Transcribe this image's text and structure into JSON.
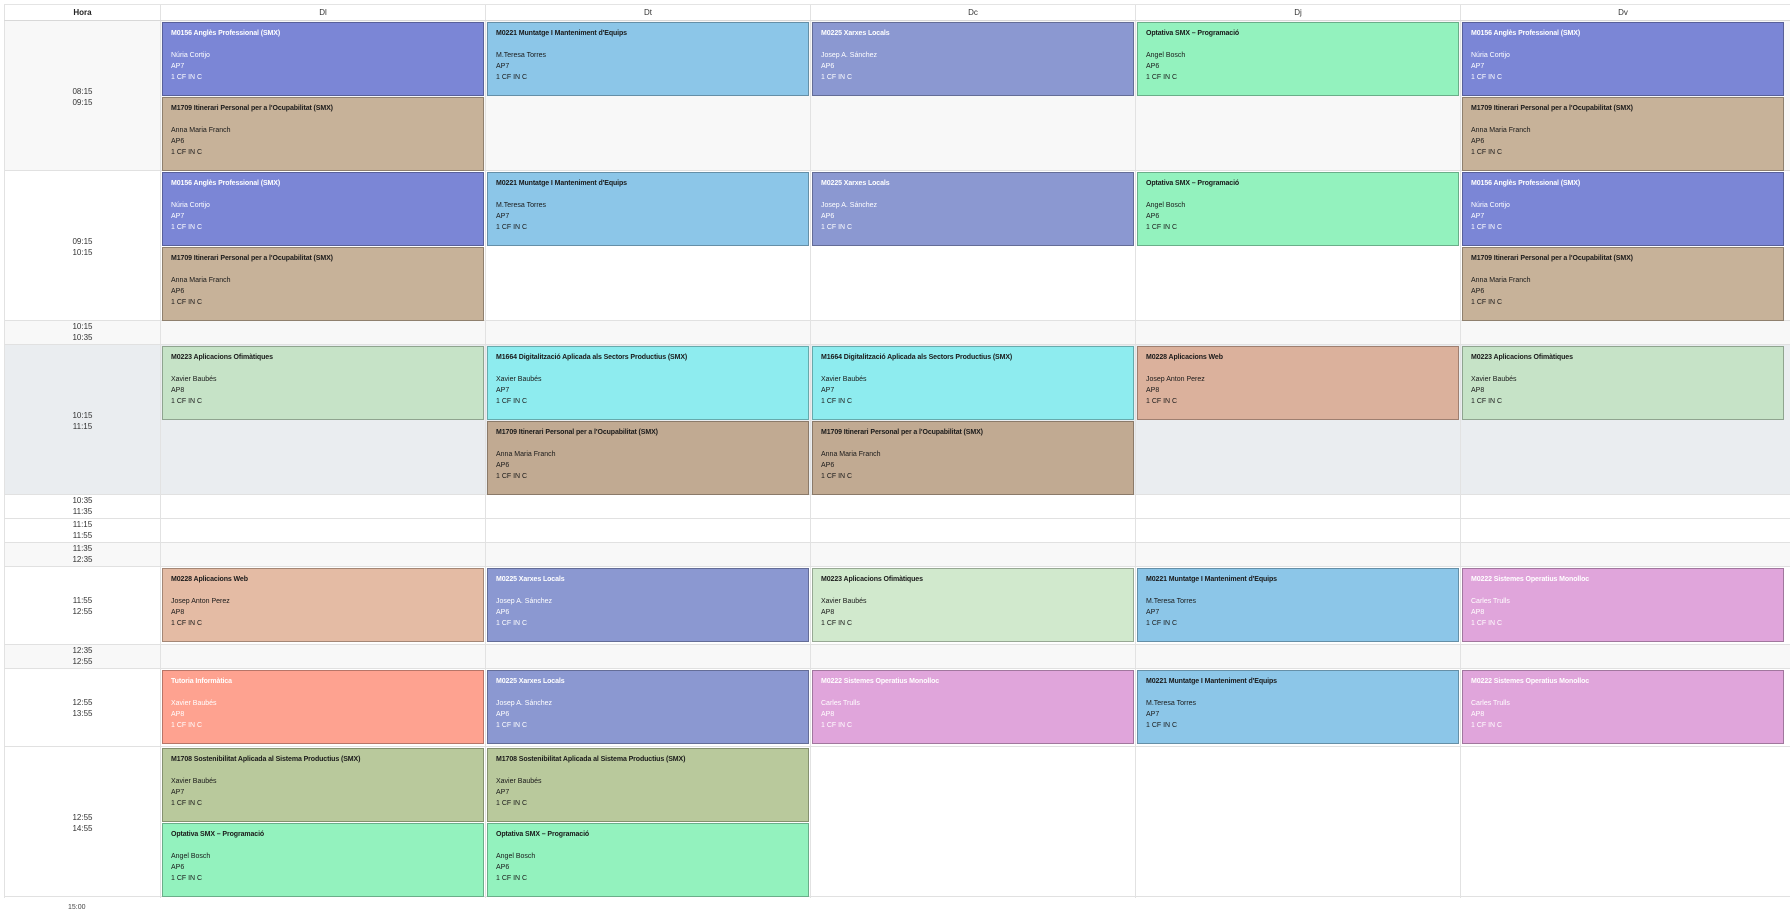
{
  "header": {
    "hora": "Hora",
    "days": [
      "Dl",
      "Dt",
      "Dc",
      "Dj",
      "Dv"
    ]
  },
  "colors": {
    "angles": "#7b86d6",
    "muntatge": "#8cc6e8",
    "xarxes": "#8b98d1",
    "optativa": "#93f2be",
    "itinerari": "#c7b299",
    "itinerari_dark": "#c1aa92",
    "aplicacions_ofimatiques": "#c6e3c7",
    "digitalitzacio": "#8eecef",
    "aplicacions_web": "#dbb19c",
    "aplicacions_web_light": "#e4bba4",
    "sistemes": "#e0a5db",
    "tutoria": "#fea290",
    "sostenibilitat": "#b9c99c",
    "ofimatiques_light": "#d1e9cd"
  },
  "rows": [
    {
      "times": [
        "08:15",
        "09:15"
      ],
      "days": [
        [
          {
            "title": "M0156 Anglès Professional (SMX)",
            "teacher": "Núria Cortijo",
            "room": "AP7",
            "group": "1 CF IN C",
            "color": "#7b86d6",
            "dark": true
          },
          {
            "title": "M1709 Itinerari Personal per a l'Ocupabilitat (SMX)",
            "teacher": "Anna Maria Franch",
            "room": "AP6",
            "group": "1 CF IN C",
            "color": "#c7b299",
            "dark": false
          }
        ],
        [
          {
            "title": "M0221 Muntatge I Manteniment d'Equips",
            "teacher": "M.Teresa Torres",
            "room": "AP7",
            "group": "1 CF IN C",
            "color": "#8cc6e8",
            "dark": false
          }
        ],
        [
          {
            "title": "M0225 Xarxes Locals",
            "teacher": "Josep A. Sánchez",
            "room": "AP6",
            "group": "1 CF IN C",
            "color": "#8b98d1",
            "dark": true
          }
        ],
        [
          {
            "title": "Optativa SMX – Programació",
            "teacher": "Angel Bosch",
            "room": "AP6",
            "group": "1 CF IN C",
            "color": "#93f2be",
            "dark": false
          }
        ],
        [
          {
            "title": "M0156 Anglès Professional (SMX)",
            "teacher": "Núria Cortijo",
            "room": "AP7",
            "group": "1 CF IN C",
            "color": "#7b86d6",
            "dark": true
          },
          {
            "title": "M1709 Itinerari Personal per a l'Ocupabilitat (SMX)",
            "teacher": "Anna Maria Franch",
            "room": "AP6",
            "group": "1 CF IN C",
            "color": "#c7b299",
            "dark": false
          }
        ]
      ]
    },
    {
      "times": [
        "09:15",
        "10:15"
      ],
      "days": [
        [
          {
            "title": "M0156 Anglès Professional (SMX)",
            "teacher": "Núria Cortijo",
            "room": "AP7",
            "group": "1 CF IN C",
            "color": "#7b86d6",
            "dark": true
          },
          {
            "title": "M1709 Itinerari Personal per a l'Ocupabilitat (SMX)",
            "teacher": "Anna Maria Franch",
            "room": "AP6",
            "group": "1 CF IN C",
            "color": "#c7b299",
            "dark": false
          }
        ],
        [
          {
            "title": "M0221 Muntatge I Manteniment d'Equips",
            "teacher": "M.Teresa Torres",
            "room": "AP7",
            "group": "1 CF IN C",
            "color": "#8cc6e8",
            "dark": false
          }
        ],
        [
          {
            "title": "M0225 Xarxes Locals",
            "teacher": "Josep A. Sánchez",
            "room": "AP6",
            "group": "1 CF IN C",
            "color": "#8b98d1",
            "dark": true
          }
        ],
        [
          {
            "title": "Optativa SMX – Programació",
            "teacher": "Angel Bosch",
            "room": "AP6",
            "group": "1 CF IN C",
            "color": "#93f2be",
            "dark": false
          }
        ],
        [
          {
            "title": "M0156 Anglès Professional (SMX)",
            "teacher": "Núria Cortijo",
            "room": "AP7",
            "group": "1 CF IN C",
            "color": "#7b86d6",
            "dark": true
          },
          {
            "title": "M1709 Itinerari Personal per a l'Ocupabilitat (SMX)",
            "teacher": "Anna Maria Franch",
            "room": "AP6",
            "group": "1 CF IN C",
            "color": "#c7b299",
            "dark": false
          }
        ]
      ]
    },
    {
      "times": [
        "10:15",
        "10:35"
      ],
      "days": [
        [],
        [],
        [],
        [],
        []
      ]
    },
    {
      "times": [
        "10:15",
        "11:15"
      ],
      "days": [
        [
          {
            "title": "M0223 Aplicacions Ofimàtiques",
            "teacher": "Xavier Baubés",
            "room": "AP8",
            "group": "1 CF IN C",
            "color": "#c6e3c7",
            "dark": false
          }
        ],
        [
          {
            "title": "M1664 Digitalització Aplicada als Sectors Productius (SMX)",
            "teacher": "Xavier Baubés",
            "room": "AP7",
            "group": "1 CF IN C",
            "color": "#8eecef",
            "dark": false
          },
          {
            "title": "M1709 Itinerari Personal per a l'Ocupabilitat (SMX)",
            "teacher": "Anna Maria Franch",
            "room": "AP6",
            "group": "1 CF IN C",
            "color": "#c1aa92",
            "dark": false
          }
        ],
        [
          {
            "title": "M1664 Digitalització Aplicada als Sectors Productius (SMX)",
            "teacher": "Xavier Baubés",
            "room": "AP7",
            "group": "1 CF IN C",
            "color": "#8eecef",
            "dark": false
          },
          {
            "title": "M1709 Itinerari Personal per a l'Ocupabilitat (SMX)",
            "teacher": "Anna Maria Franch",
            "room": "AP6",
            "group": "1 CF IN C",
            "color": "#c1aa92",
            "dark": false
          }
        ],
        [
          {
            "title": "M0228 Aplicacions Web",
            "teacher": "Josep Anton Perez",
            "room": "AP8",
            "group": "1 CF IN C",
            "color": "#dbb19c",
            "dark": false
          }
        ],
        [
          {
            "title": "M0223 Aplicacions Ofimàtiques",
            "teacher": "Xavier Baubés",
            "room": "AP8",
            "group": "1 CF IN C",
            "color": "#c6e3c7",
            "dark": false
          }
        ]
      ]
    },
    {
      "times": [
        "10:35",
        "11:35"
      ],
      "days": [
        [],
        [],
        [],
        [],
        []
      ]
    },
    {
      "times": [
        "11:15",
        "11:55"
      ],
      "days": [
        [],
        [],
        [],
        [],
        []
      ]
    },
    {
      "times": [
        "11:35",
        "12:35"
      ],
      "days": [
        [],
        [],
        [],
        [],
        []
      ]
    },
    {
      "times": [
        "11:55",
        "12:55"
      ],
      "days": [
        [
          {
            "title": "M0228 Aplicacions Web",
            "teacher": "Josep Anton Perez",
            "room": "AP8",
            "group": "1 CF IN C",
            "color": "#e4bba4",
            "dark": false
          }
        ],
        [
          {
            "title": "M0225 Xarxes Locals",
            "teacher": "Josep A. Sánchez",
            "room": "AP6",
            "group": "1 CF IN C",
            "color": "#8b98d1",
            "dark": true
          }
        ],
        [
          {
            "title": "M0223 Aplicacions Ofimàtiques",
            "teacher": "Xavier Baubés",
            "room": "AP8",
            "group": "1 CF IN C",
            "color": "#d1e9cd",
            "dark": false
          }
        ],
        [
          {
            "title": "M0221 Muntatge I Manteniment d'Equips",
            "teacher": "M.Teresa Torres",
            "room": "AP7",
            "group": "1 CF IN C",
            "color": "#8cc6e8",
            "dark": false
          }
        ],
        [
          {
            "title": "M0222 Sistemes Operatius Monolloc",
            "teacher": "Carles Trulls",
            "room": "AP8",
            "group": "1 CF IN C",
            "color": "#e0a5db",
            "dark": true
          }
        ]
      ]
    },
    {
      "times": [
        "12:35",
        "12:55"
      ],
      "days": [
        [],
        [],
        [],
        [],
        []
      ]
    },
    {
      "times": [
        "12:55",
        "13:55"
      ],
      "days": [
        [
          {
            "title": "Tutoria Informàtica",
            "teacher": "Xavier Baubés",
            "room": "AP8",
            "group": "1 CF IN C",
            "color": "#fea290",
            "dark": true
          }
        ],
        [
          {
            "title": "M0225 Xarxes Locals",
            "teacher": "Josep A. Sánchez",
            "room": "AP6",
            "group": "1 CF IN C",
            "color": "#8b98d1",
            "dark": true
          }
        ],
        [
          {
            "title": "M0222 Sistemes Operatius Monolloc",
            "teacher": "Carles Trulls",
            "room": "AP8",
            "group": "1 CF IN C",
            "color": "#e0a5db",
            "dark": true
          }
        ],
        [
          {
            "title": "M0221 Muntatge I Manteniment d'Equips",
            "teacher": "M.Teresa Torres",
            "room": "AP7",
            "group": "1 CF IN C",
            "color": "#8cc6e8",
            "dark": false
          }
        ],
        [
          {
            "title": "M0222 Sistemes Operatius Monolloc",
            "teacher": "Carles Trulls",
            "room": "AP8",
            "group": "1 CF IN C",
            "color": "#e0a5db",
            "dark": true
          }
        ]
      ]
    },
    {
      "times": [
        "12:55",
        "14:55"
      ],
      "days": [
        [
          {
            "title": "M1708 Sostenibilitat Aplicada al Sistema Productius (SMX)",
            "teacher": "Xavier Baubés",
            "room": "AP7",
            "group": "1 CF IN C",
            "color": "#b9c99c",
            "dark": false
          },
          {
            "title": "Optativa SMX – Programació",
            "teacher": "Angel Bosch",
            "room": "AP6",
            "group": "1 CF IN C",
            "color": "#93f2be",
            "dark": false
          }
        ],
        [
          {
            "title": "M1708 Sostenibilitat Aplicada al Sistema Productius (SMX)",
            "teacher": "Xavier Baubés",
            "room": "AP7",
            "group": "1 CF IN C",
            "color": "#b9c99c",
            "dark": false
          },
          {
            "title": "Optativa SMX – Programació",
            "teacher": "Angel Bosch",
            "room": "AP6",
            "group": "1 CF IN C",
            "color": "#93f2be",
            "dark": false
          }
        ],
        [],
        [],
        []
      ]
    }
  ],
  "footer_time": "15:00"
}
